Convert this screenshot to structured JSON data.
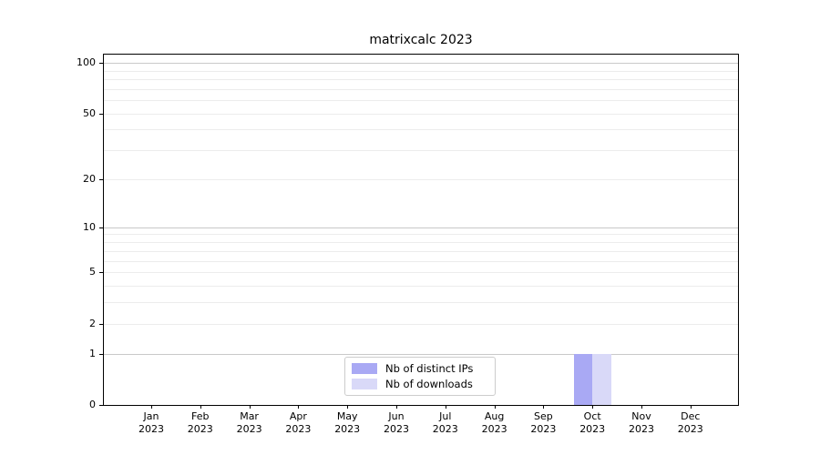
{
  "chart_data": {
    "type": "bar",
    "title": "matrixcalc 2023",
    "categories": [
      "Jan",
      "Feb",
      "Mar",
      "Apr",
      "May",
      "Jun",
      "Jul",
      "Aug",
      "Sep",
      "Oct",
      "Nov",
      "Dec"
    ],
    "category_year": "2023",
    "series": [
      {
        "name": "Nb of distinct IPs",
        "color": "#a9a9f4",
        "values": [
          0,
          0,
          0,
          0,
          0,
          0,
          0,
          0,
          0,
          1,
          0,
          0
        ]
      },
      {
        "name": "Nb of downloads",
        "color": "#d9d9f8",
        "values": [
          0,
          0,
          0,
          0,
          0,
          0,
          0,
          0,
          0,
          1,
          0,
          0
        ]
      }
    ],
    "y_axis": {
      "scale": "log1p",
      "tick_values": [
        0,
        1,
        2,
        5,
        10,
        20,
        50,
        100
      ],
      "max": 112,
      "major_gridlines": [
        1,
        10,
        100
      ],
      "minor_gridlines": [
        2,
        3,
        4,
        5,
        6,
        7,
        8,
        9,
        20,
        30,
        40,
        50,
        60,
        70,
        80,
        90
      ]
    },
    "legend": {
      "position": "lower center",
      "items": [
        "Nb of distinct IPs",
        "Nb of downloads"
      ]
    },
    "grid": true,
    "colors": {
      "major_grid": "#c9c9c9",
      "minor_grid": "#ececec",
      "axis": "#000000",
      "background": "#ffffff"
    }
  }
}
